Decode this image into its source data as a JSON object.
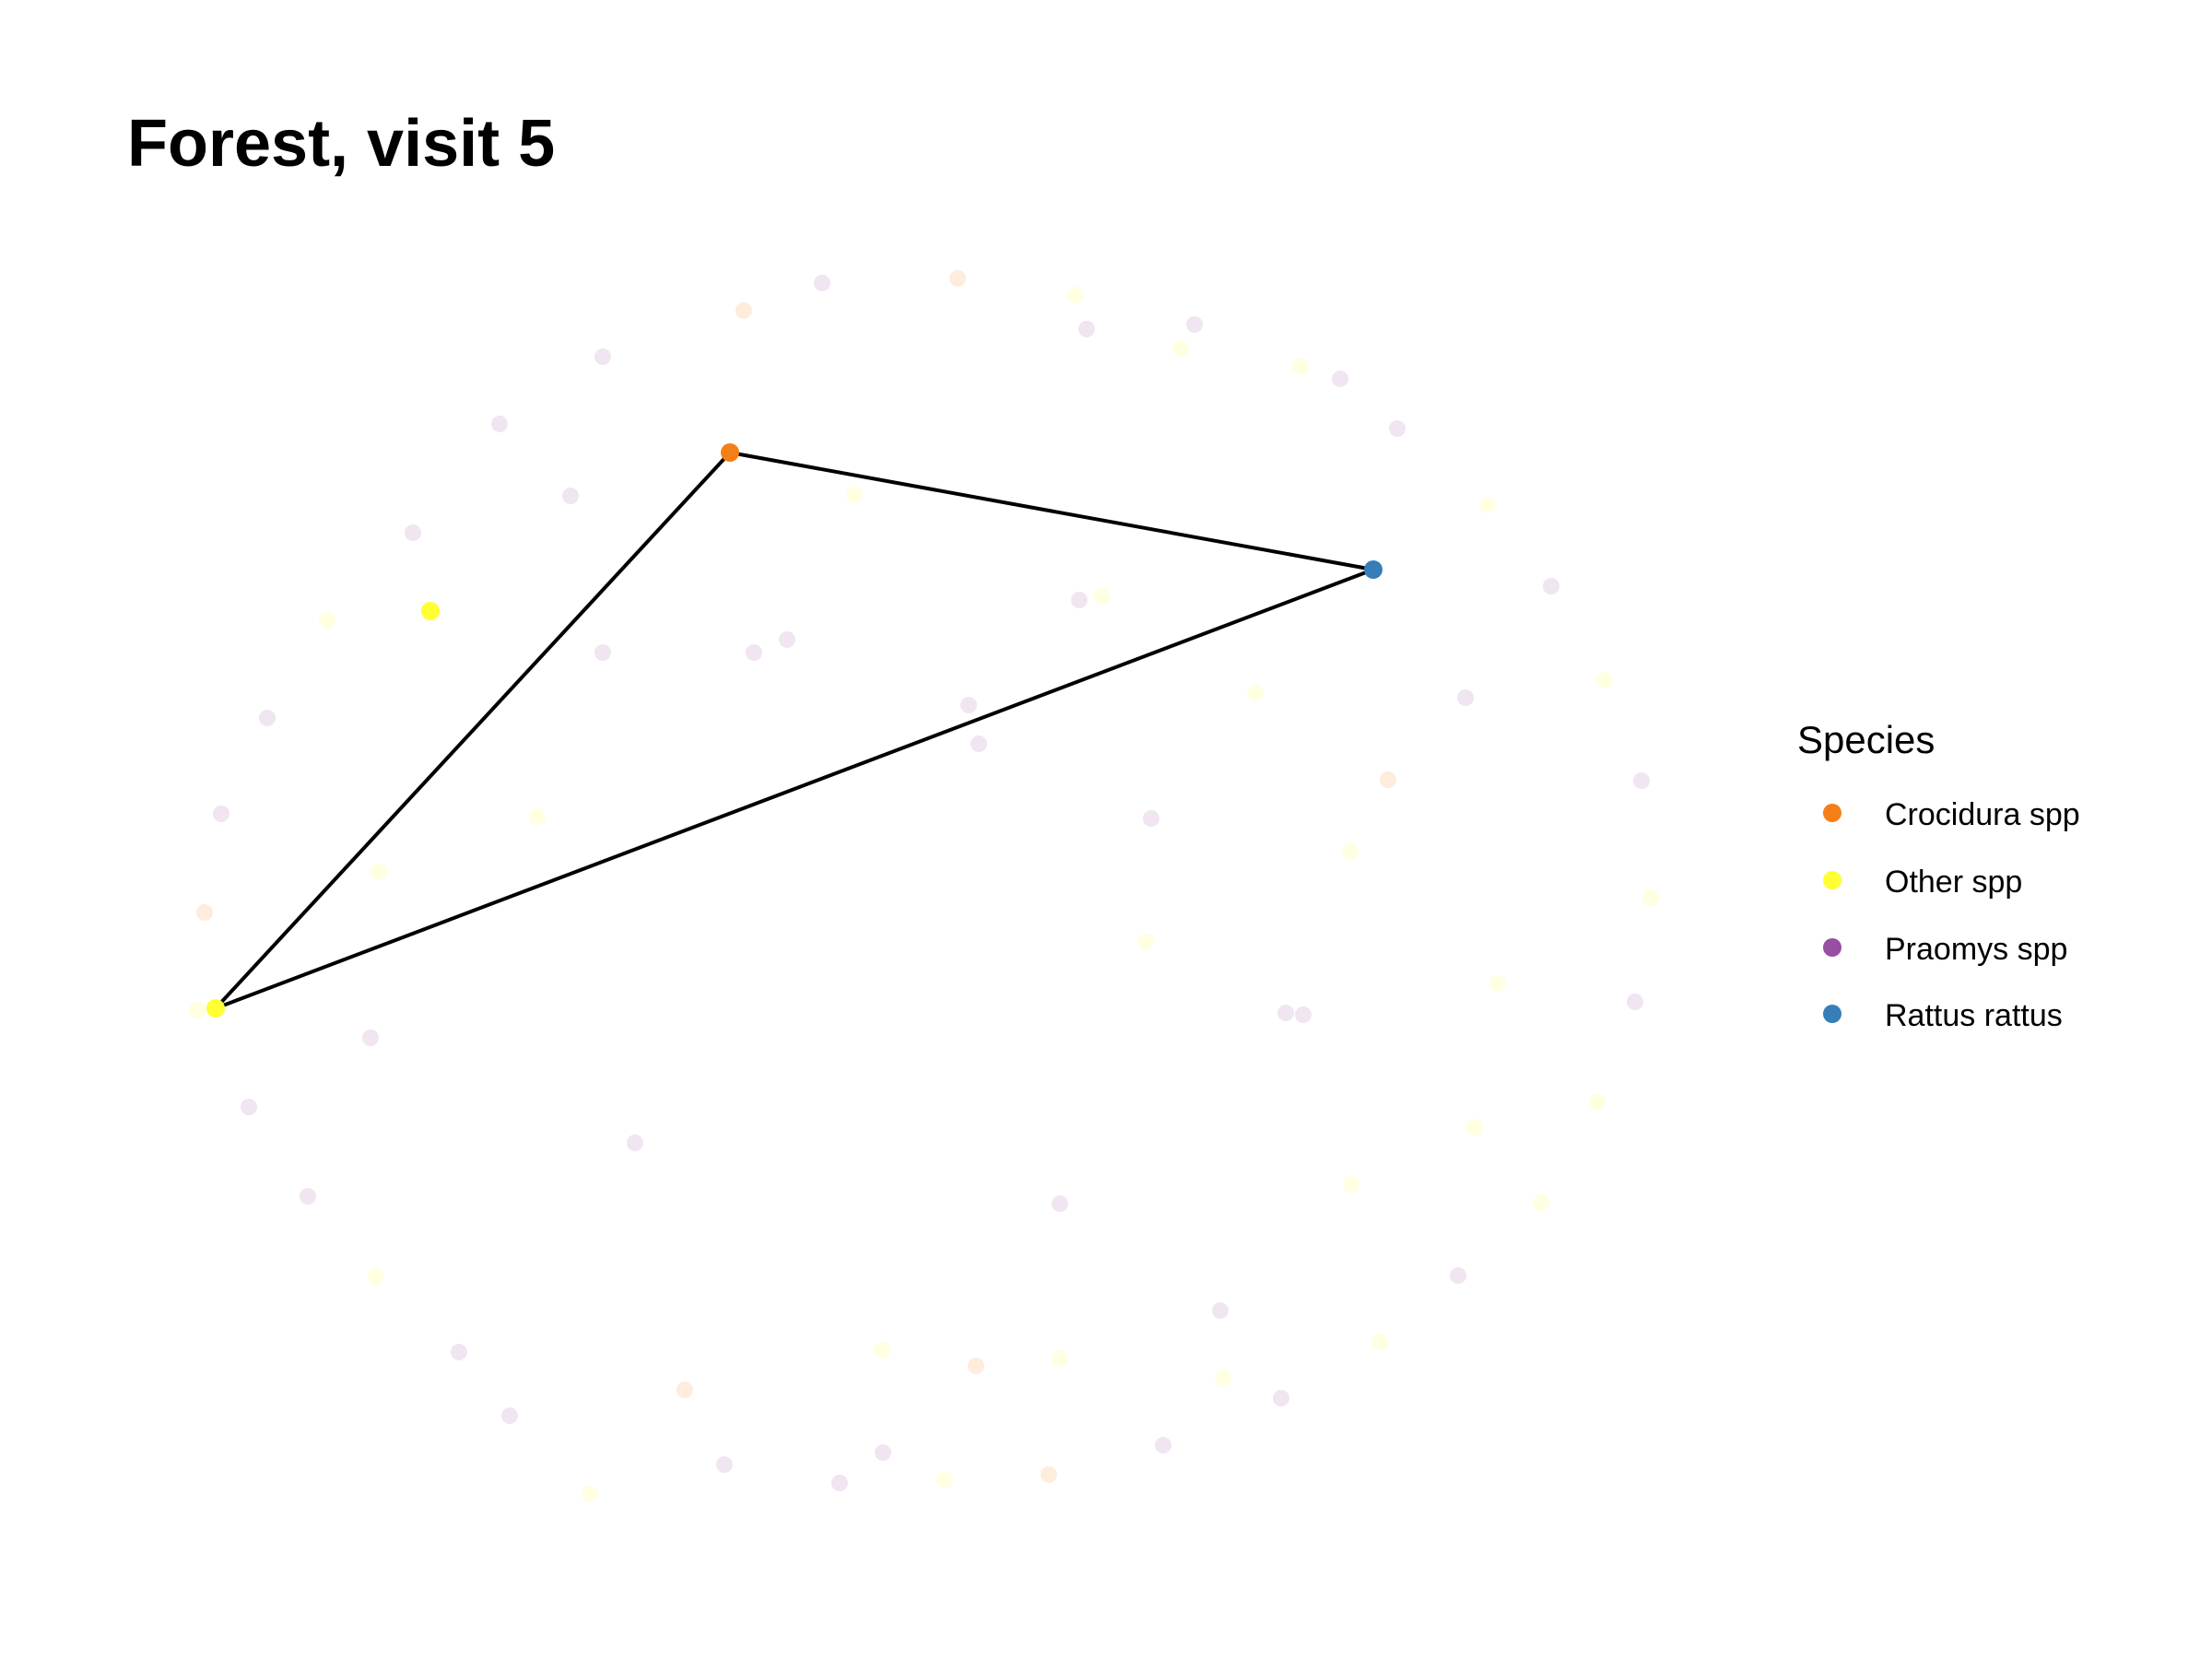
{
  "title": "Forest, visit 5",
  "legend": {
    "title": "Species",
    "items": [
      {
        "key": "crocidura",
        "label": "Crocidura spp",
        "color": "#f57f17"
      },
      {
        "key": "other",
        "label": "Other spp",
        "color": "#ffff33"
      },
      {
        "key": "praomys",
        "label": "Praomys spp",
        "color": "#984ea3"
      },
      {
        "key": "rattus",
        "label": "Rattus rattus",
        "color": "#377eb8"
      }
    ]
  },
  "background_opacity": 0.15,
  "highlighted_nodes": [
    {
      "id": "n-crocidura",
      "species": "crocidura"
    },
    {
      "id": "n-rattus",
      "species": "rattus"
    },
    {
      "id": "n-other",
      "species": "other"
    },
    {
      "id": "n-other-single",
      "species": "other"
    }
  ],
  "edges": [
    [
      "n-crocidura",
      "n-rattus"
    ],
    [
      "n-rattus",
      "n-other"
    ],
    [
      "n-other",
      "n-crocidura"
    ]
  ],
  "faded_nodes": [
    "praomys",
    "crocidura",
    "other",
    "praomys",
    "other",
    "praomys",
    "other",
    "praomys",
    "other",
    "praomys",
    "other",
    "praomys",
    "other",
    "other",
    "praomys",
    "other",
    "praomys",
    "praomys",
    "crocidura",
    "other",
    "praomys",
    "praomys",
    "other",
    "praomys",
    "praomys",
    "other",
    "praomys",
    "praomys",
    "other",
    "crocidura",
    "praomys",
    "praomys",
    "other",
    "praomys",
    "praomys",
    "praomys",
    "crocidura",
    "praomys",
    "other",
    "praomys",
    "praomys",
    "crocidura",
    "other",
    "praomys",
    "praomys",
    "other",
    "praomys",
    "praomys",
    "other",
    "praomys",
    "praomys",
    "praomys",
    "other",
    "other",
    "praomys",
    "praomys",
    "other",
    "other",
    "praomys",
    "other",
    "praomys",
    "praomys",
    "other",
    "other",
    "crocidura",
    "praomys",
    "other",
    "crocidura",
    "praomys",
    "other",
    "other",
    "praomys"
  ]
}
